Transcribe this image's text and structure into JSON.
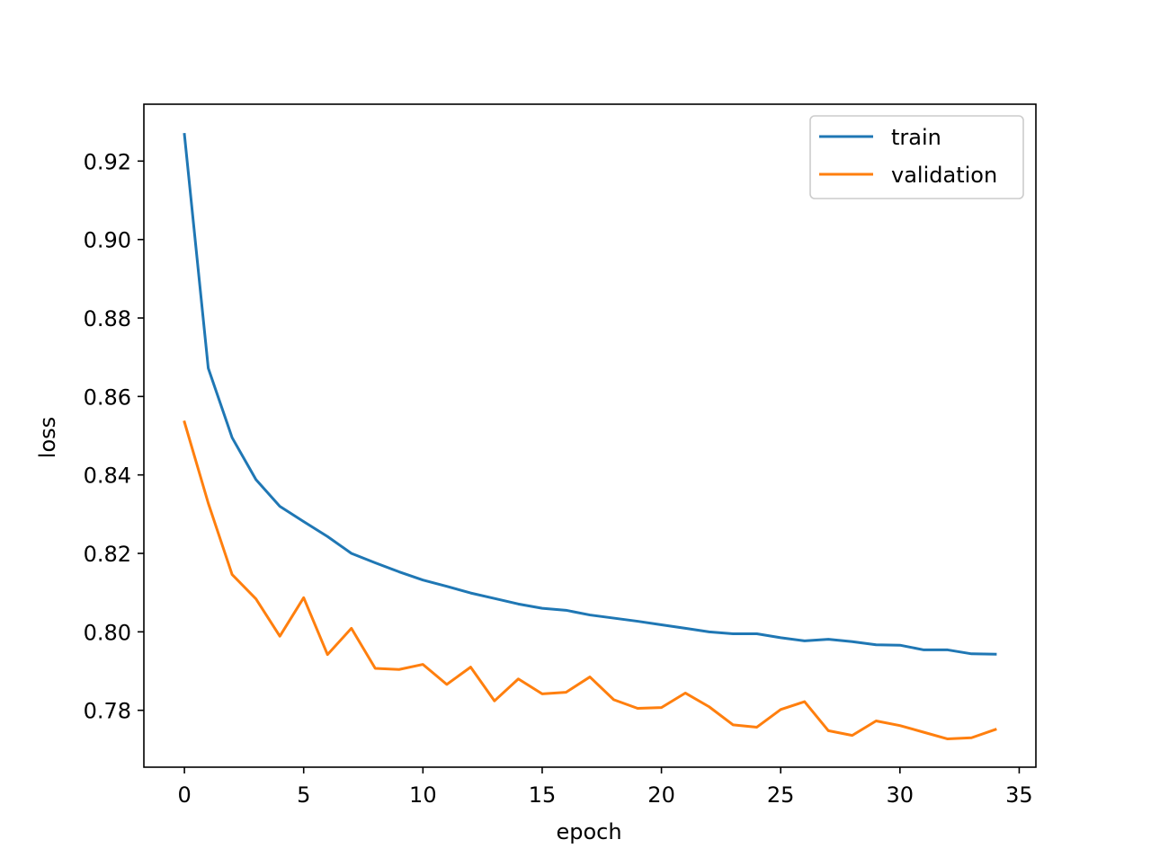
{
  "chart_data": {
    "type": "line",
    "title": "",
    "xlabel": "epoch",
    "ylabel": "loss",
    "xlim": [
      -1.7,
      35.7
    ],
    "ylim": [
      0.7655,
      0.9345
    ],
    "x_ticks": [
      0,
      5,
      10,
      15,
      20,
      25,
      30,
      35
    ],
    "x_tick_labels": [
      "0",
      "5",
      "10",
      "15",
      "20",
      "25",
      "30",
      "35"
    ],
    "y_ticks": [
      0.78,
      0.8,
      0.82,
      0.84,
      0.86,
      0.88,
      0.9,
      0.92
    ],
    "y_tick_labels": [
      "0.78",
      "0.80",
      "0.82",
      "0.84",
      "0.86",
      "0.88",
      "0.90",
      "0.92"
    ],
    "grid": false,
    "legend_position": "top-right",
    "x": [
      0,
      1,
      2,
      3,
      4,
      5,
      6,
      7,
      8,
      9,
      10,
      11,
      12,
      13,
      14,
      15,
      16,
      17,
      18,
      19,
      20,
      21,
      22,
      23,
      24,
      25,
      26,
      27,
      28,
      29,
      30,
      31,
      32,
      33,
      34
    ],
    "series": [
      {
        "name": "train",
        "color": "#1f77b4",
        "values": [
          0.9268,
          0.8672,
          0.8495,
          0.8388,
          0.832,
          0.8281,
          0.8243,
          0.82,
          0.8176,
          0.8153,
          0.8132,
          0.8116,
          0.8099,
          0.8085,
          0.8071,
          0.806,
          0.8055,
          0.8043,
          0.8035,
          0.8027,
          0.8018,
          0.8009,
          0.8,
          0.7995,
          0.7995,
          0.7985,
          0.7977,
          0.7981,
          0.7975,
          0.7967,
          0.7966,
          0.7954,
          0.7954,
          0.7944,
          0.7943
        ]
      },
      {
        "name": "validation",
        "color": "#ff7f0e",
        "values": [
          0.8535,
          0.8328,
          0.8146,
          0.8084,
          0.7989,
          0.8087,
          0.7942,
          0.8009,
          0.7907,
          0.7904,
          0.7917,
          0.7866,
          0.791,
          0.7824,
          0.788,
          0.7842,
          0.7846,
          0.7885,
          0.7827,
          0.7805,
          0.7807,
          0.7844,
          0.7809,
          0.7763,
          0.7757,
          0.7802,
          0.7822,
          0.7748,
          0.7736,
          0.7773,
          0.7761,
          0.7744,
          0.7727,
          0.773,
          0.7751
        ]
      }
    ]
  }
}
